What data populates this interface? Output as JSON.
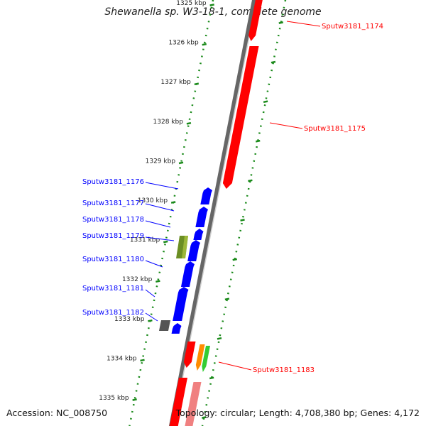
{
  "title": "Shewanella sp. W3-18-1, complete genome",
  "footer": {
    "accession": "Accession: NC_008750",
    "summary": "Topology: circular; Length: 4,708,380 bp; Genes: 4,172"
  },
  "ticks": [
    {
      "label": "1325 kbp",
      "kbp": 1325
    },
    {
      "label": "1326 kbp",
      "kbp": 1326
    },
    {
      "label": "1327 kbp",
      "kbp": 1327
    },
    {
      "label": "1328 kbp",
      "kbp": 1328
    },
    {
      "label": "1329 kbp",
      "kbp": 1329
    },
    {
      "label": "1330 kbp",
      "kbp": 1330
    },
    {
      "label": "1331 kbp",
      "kbp": 1331
    },
    {
      "label": "1332 kbp",
      "kbp": 1332
    },
    {
      "label": "1333 kbp",
      "kbp": 1333
    },
    {
      "label": "1334 kbp",
      "kbp": 1334
    },
    {
      "label": "1335 kbp",
      "kbp": 1335
    }
  ],
  "genes": [
    {
      "label": "Sputw3181_1174",
      "strand": "forward",
      "color": "#ff0000"
    },
    {
      "label": "Sputw3181_1175",
      "strand": "forward",
      "color": "#ff0000"
    },
    {
      "label": "Sputw3181_1176",
      "strand": "reverse",
      "color": "#0000ff"
    },
    {
      "label": "Sputw3181_1177",
      "strand": "reverse",
      "color": "#0000ff"
    },
    {
      "label": "Sputw3181_1178",
      "strand": "reverse",
      "color": "#0000ff"
    },
    {
      "label": "Sputw3181_1179",
      "strand": "reverse",
      "color": "#6b8e23"
    },
    {
      "label": "Sputw3181_1180",
      "strand": "reverse",
      "color": "#0000ff"
    },
    {
      "label": "Sputw3181_1181",
      "strand": "reverse",
      "color": "#0000ff"
    },
    {
      "label": "Sputw3181_1182",
      "strand": "reverse",
      "color": "#0000ff"
    },
    {
      "label": "Sputw3181_1183",
      "strand": "forward",
      "color": "#ff0000"
    }
  ],
  "colors": {
    "backbone": "#888888",
    "forward": "#ff0000",
    "reverse": "#0000ff",
    "rna": "#6b8e23",
    "other": "#555555",
    "orange": "#ff8c00",
    "green": "#33cc33",
    "pink": "#f08080",
    "ruler": "#1a8a1a"
  }
}
